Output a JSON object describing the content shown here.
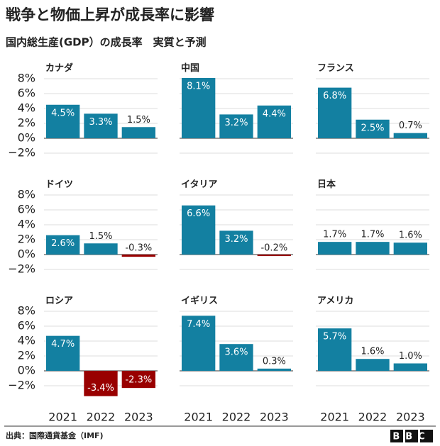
{
  "title": "戦争と物価上昇が成長率に影響",
  "subtitle": "国内総生産(GDP）の成長率　実質と予測",
  "source": "出典：国際通貨基金（IMF)",
  "logo": "BBC",
  "chart_data": [
    {
      "type": "bar",
      "title": "カナダ",
      "categories": [
        null,
        null,
        null
      ],
      "values": [
        4.5,
        3.3,
        1.5
      ],
      "value_labels": [
        "4.5%",
        "3.3%",
        "1.5%"
      ],
      "color": "#1380a1",
      "negative_color": "#990000",
      "ylim": [
        -4,
        9
      ],
      "yticks": [
        {
          "value": -2,
          "label": "−2%"
        },
        {
          "value": 0,
          "label": "0%"
        },
        {
          "value": 2,
          "label": "2%"
        },
        {
          "value": 4,
          "label": "4%"
        },
        {
          "value": 6,
          "label": "6%"
        },
        {
          "value": 8,
          "label": "8%"
        }
      ],
      "grid": true
    },
    {
      "type": "bar",
      "title": "中国",
      "categories": [
        null,
        null,
        null
      ],
      "values": [
        8.1,
        3.2,
        4.4
      ],
      "value_labels": [
        "8.1%",
        "3.2%",
        "4.4%"
      ],
      "color": "#1380a1",
      "negative_color": "#990000",
      "ylim": [
        -4,
        9
      ],
      "yticks": [
        -2,
        0,
        2,
        4,
        6,
        8
      ],
      "grid": true
    },
    {
      "type": "bar",
      "title": "フランス",
      "categories": [
        null,
        null,
        null
      ],
      "values": [
        6.8,
        2.5,
        0.7
      ],
      "value_labels": [
        "6.8%",
        "2.5%",
        "0.7%"
      ],
      "color": "#1380a1",
      "negative_color": "#990000",
      "ylim": [
        -4,
        9
      ],
      "yticks": [
        -2,
        0,
        2,
        4,
        6,
        8
      ],
      "grid": true
    },
    {
      "type": "bar",
      "title": "ドイツ",
      "categories": [
        null,
        null,
        null
      ],
      "values": [
        2.6,
        1.5,
        -0.3
      ],
      "value_labels": [
        "2.6%",
        "1.5%",
        "-0.3%"
      ],
      "color": "#1380a1",
      "negative_color": "#990000",
      "ylim": [
        -4,
        9
      ],
      "yticks": [
        {
          "value": -2,
          "label": "−2%"
        },
        {
          "value": 0,
          "label": "0%"
        },
        {
          "value": 2,
          "label": "2%"
        },
        {
          "value": 4,
          "label": "4%"
        },
        {
          "value": 6,
          "label": "6%"
        },
        {
          "value": 8,
          "label": "8%"
        }
      ],
      "grid": true
    },
    {
      "type": "bar",
      "title": "イタリア",
      "categories": [
        null,
        null,
        null
      ],
      "values": [
        6.6,
        3.2,
        -0.2
      ],
      "value_labels": [
        "6.6%",
        "3.2%",
        "-0.2%"
      ],
      "color": "#1380a1",
      "negative_color": "#990000",
      "ylim": [
        -4,
        9
      ],
      "yticks": [
        -2,
        0,
        2,
        4,
        6,
        8
      ],
      "grid": true
    },
    {
      "type": "bar",
      "title": "日本",
      "categories": [
        null,
        null,
        null
      ],
      "values": [
        1.7,
        1.7,
        1.6
      ],
      "value_labels": [
        "1.7%",
        "1.7%",
        "1.6%"
      ],
      "color": "#1380a1",
      "negative_color": "#990000",
      "ylim": [
        -4,
        9
      ],
      "yticks": [
        -2,
        0,
        2,
        4,
        6,
        8
      ],
      "grid": true
    },
    {
      "type": "bar",
      "title": "ロシア",
      "categories": [
        "2021",
        "2022",
        "2023"
      ],
      "values": [
        4.7,
        -3.4,
        -2.3
      ],
      "value_labels": [
        "4.7%",
        "-3.4%",
        "-2.3%"
      ],
      "color": "#1380a1",
      "negative_color": "#990000",
      "ylim": [
        -4,
        9
      ],
      "yticks": [
        {
          "value": -2,
          "label": "−2%"
        },
        {
          "value": 0,
          "label": "0%"
        },
        {
          "value": 2,
          "label": "2%"
        },
        {
          "value": 4,
          "label": "4%"
        },
        {
          "value": 6,
          "label": "6%"
        },
        {
          "value": 8,
          "label": "8%"
        }
      ],
      "grid": true
    },
    {
      "type": "bar",
      "title": "イギリス",
      "categories": [
        "2021",
        "2022",
        "2023"
      ],
      "values": [
        7.4,
        3.6,
        0.3
      ],
      "value_labels": [
        "7.4%",
        "3.6%",
        "0.3%"
      ],
      "color": "#1380a1",
      "negative_color": "#990000",
      "ylim": [
        -4,
        9
      ],
      "yticks": [
        -2,
        0,
        2,
        4,
        6,
        8
      ],
      "grid": true
    },
    {
      "type": "bar",
      "title": "アメリカ",
      "categories": [
        "2021",
        "2022",
        "2023"
      ],
      "values": [
        5.7,
        1.6,
        1.0
      ],
      "value_labels": [
        "5.7%",
        "1.6%",
        "1.0%"
      ],
      "color": "#1380a1",
      "negative_color": "#990000",
      "ylim": [
        -4,
        9
      ],
      "yticks": [
        -2,
        0,
        2,
        4,
        6,
        8
      ],
      "grid": true
    }
  ]
}
